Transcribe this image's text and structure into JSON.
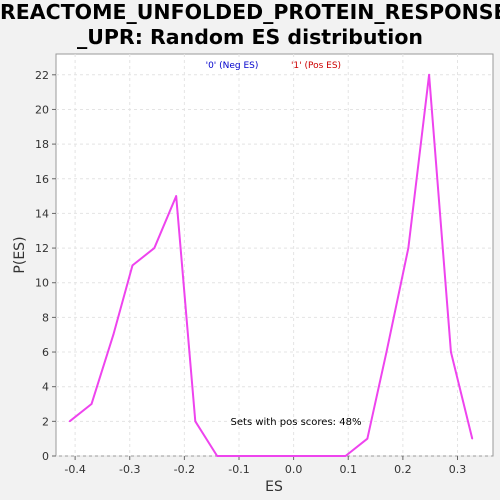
{
  "chart_data": {
    "type": "line",
    "title_lines": [
      "REACTOME_UNFOLDED_PROTEIN_RESPONSE",
      "_UPR: Random ES distribution"
    ],
    "xlabel": "ES",
    "ylabel": "P(ES)",
    "xlim": [
      -0.435,
      0.365
    ],
    "ylim": [
      0,
      23.2
    ],
    "xticks": [
      -0.4,
      -0.3,
      -0.2,
      -0.1,
      0.0,
      0.1,
      0.2,
      0.3
    ],
    "xtick_labels": [
      "-0.4",
      "-0.3",
      "-0.2",
      "-0.1",
      "0.0",
      "0.1",
      "0.2",
      "0.3"
    ],
    "yticks": [
      0,
      2,
      4,
      6,
      8,
      10,
      12,
      14,
      16,
      18,
      20,
      22
    ],
    "ytick_labels": [
      "0",
      "2",
      "4",
      "6",
      "8",
      "10",
      "12",
      "14",
      "16",
      "18",
      "20",
      "22"
    ],
    "grid": true,
    "legend": [
      {
        "label": "'0' (Neg ES)",
        "color": "#0000cc"
      },
      {
        "label": "'1' (Pos ES)",
        "color": "#cc0000"
      }
    ],
    "annotation": "Sets with pos scores: 48%",
    "series": [
      {
        "color": "#ee44ee",
        "x": [
          -0.41,
          -0.37,
          -0.33,
          -0.295,
          -0.255,
          -0.215,
          -0.18,
          -0.14,
          -0.1,
          -0.06,
          0.0,
          0.05,
          0.095,
          0.135,
          0.17,
          0.21,
          0.248,
          0.288,
          0.327
        ],
        "y": [
          2,
          3,
          7,
          11,
          12,
          15,
          2,
          0,
          0,
          0,
          0,
          0,
          0,
          1,
          6,
          12,
          22,
          6,
          1
        ]
      }
    ]
  }
}
